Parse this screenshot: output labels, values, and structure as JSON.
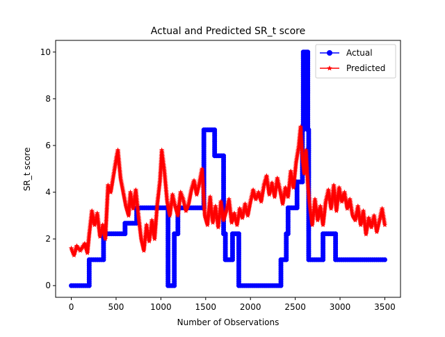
{
  "chart_data": {
    "type": "line",
    "title": "Actual and Predicted SR_t score",
    "xlabel": "Number of Observations",
    "ylabel": "SR_t score",
    "xlim": [
      -175,
      3675
    ],
    "ylim": [
      -0.5,
      10.5
    ],
    "xticks": [
      0,
      500,
      1000,
      1500,
      2000,
      2500,
      3000,
      3500
    ],
    "yticks": [
      0,
      2,
      4,
      6,
      8,
      10
    ],
    "grid": false,
    "legend_position": "top-right",
    "series": [
      {
        "name": "Actual",
        "color": "#0000ff",
        "marker": "circle",
        "points": [
          [
            0,
            0
          ],
          [
            200,
            0
          ],
          [
            200,
            1.11
          ],
          [
            360,
            1.11
          ],
          [
            360,
            2.22
          ],
          [
            600,
            2.22
          ],
          [
            600,
            2.67
          ],
          [
            730,
            2.67
          ],
          [
            730,
            3.33
          ],
          [
            1080,
            3.33
          ],
          [
            1080,
            0
          ],
          [
            1150,
            0
          ],
          [
            1150,
            2.22
          ],
          [
            1190,
            2.22
          ],
          [
            1190,
            3.33
          ],
          [
            1480,
            3.33
          ],
          [
            1480,
            6.67
          ],
          [
            1600,
            6.67
          ],
          [
            1600,
            5.56
          ],
          [
            1700,
            5.56
          ],
          [
            1700,
            2.22
          ],
          [
            1720,
            2.22
          ],
          [
            1720,
            1.11
          ],
          [
            1800,
            1.11
          ],
          [
            1800,
            2.22
          ],
          [
            1870,
            2.22
          ],
          [
            1870,
            0
          ],
          [
            2340,
            0
          ],
          [
            2340,
            1.11
          ],
          [
            2400,
            1.11
          ],
          [
            2400,
            2.22
          ],
          [
            2420,
            2.22
          ],
          [
            2420,
            3.33
          ],
          [
            2520,
            3.33
          ],
          [
            2520,
            4.44
          ],
          [
            2580,
            4.44
          ],
          [
            2580,
            6.67
          ],
          [
            2590,
            6.67
          ],
          [
            2590,
            10
          ],
          [
            2640,
            10
          ],
          [
            2640,
            6.67
          ],
          [
            2650,
            6.67
          ],
          [
            2650,
            1.11
          ],
          [
            2810,
            1.11
          ],
          [
            2810,
            2.22
          ],
          [
            2950,
            2.22
          ],
          [
            2950,
            1.11
          ],
          [
            3500,
            1.11
          ]
        ]
      },
      {
        "name": "Predicted",
        "color": "#ff0000",
        "marker": "star",
        "points": [
          [
            0,
            1.6
          ],
          [
            30,
            1.3
          ],
          [
            60,
            1.7
          ],
          [
            100,
            1.5
          ],
          [
            150,
            1.8
          ],
          [
            180,
            1.4
          ],
          [
            200,
            2.2
          ],
          [
            230,
            3.2
          ],
          [
            260,
            2.6
          ],
          [
            290,
            3.1
          ],
          [
            320,
            2.1
          ],
          [
            350,
            2.6
          ],
          [
            380,
            2.0
          ],
          [
            410,
            4.3
          ],
          [
            440,
            4.0
          ],
          [
            470,
            4.7
          ],
          [
            500,
            5.4
          ],
          [
            520,
            5.8
          ],
          [
            550,
            4.6
          ],
          [
            580,
            4.0
          ],
          [
            610,
            3.4
          ],
          [
            640,
            3.0
          ],
          [
            660,
            4.0
          ],
          [
            690,
            3.3
          ],
          [
            720,
            4.1
          ],
          [
            750,
            3.0
          ],
          [
            780,
            2.0
          ],
          [
            810,
            1.5
          ],
          [
            840,
            2.6
          ],
          [
            870,
            1.9
          ],
          [
            900,
            2.8
          ],
          [
            930,
            2.0
          ],
          [
            960,
            3.5
          ],
          [
            990,
            4.5
          ],
          [
            1010,
            5.8
          ],
          [
            1040,
            4.9
          ],
          [
            1070,
            3.6
          ],
          [
            1100,
            3.0
          ],
          [
            1130,
            3.9
          ],
          [
            1160,
            3.4
          ],
          [
            1190,
            3.0
          ],
          [
            1220,
            4.0
          ],
          [
            1250,
            3.7
          ],
          [
            1280,
            3.2
          ],
          [
            1310,
            3.5
          ],
          [
            1340,
            4.1
          ],
          [
            1370,
            4.5
          ],
          [
            1400,
            3.9
          ],
          [
            1430,
            4.4
          ],
          [
            1460,
            5.0
          ],
          [
            1490,
            3.0
          ],
          [
            1520,
            2.6
          ],
          [
            1550,
            3.8
          ],
          [
            1580,
            2.7
          ],
          [
            1610,
            3.4
          ],
          [
            1640,
            2.5
          ],
          [
            1670,
            3.6
          ],
          [
            1700,
            2.8
          ],
          [
            1730,
            3.2
          ],
          [
            1760,
            3.7
          ],
          [
            1790,
            2.7
          ],
          [
            1820,
            3.1
          ],
          [
            1850,
            2.6
          ],
          [
            1880,
            3.3
          ],
          [
            1910,
            2.9
          ],
          [
            1940,
            3.5
          ],
          [
            1970,
            3.0
          ],
          [
            2000,
            3.6
          ],
          [
            2030,
            4.1
          ],
          [
            2060,
            3.7
          ],
          [
            2090,
            4.0
          ],
          [
            2120,
            3.6
          ],
          [
            2150,
            4.3
          ],
          [
            2180,
            4.7
          ],
          [
            2210,
            3.9
          ],
          [
            2240,
            4.4
          ],
          [
            2270,
            3.8
          ],
          [
            2300,
            4.6
          ],
          [
            2330,
            4.1
          ],
          [
            2360,
            3.5
          ],
          [
            2390,
            4.2
          ],
          [
            2420,
            3.8
          ],
          [
            2450,
            4.9
          ],
          [
            2480,
            4.2
          ],
          [
            2510,
            5.3
          ],
          [
            2540,
            6.0
          ],
          [
            2560,
            6.8
          ],
          [
            2580,
            5.5
          ],
          [
            2600,
            4.8
          ],
          [
            2620,
            5.8
          ],
          [
            2640,
            4.4
          ],
          [
            2660,
            3.5
          ],
          [
            2690,
            2.6
          ],
          [
            2720,
            3.7
          ],
          [
            2750,
            2.8
          ],
          [
            2780,
            3.4
          ],
          [
            2810,
            2.6
          ],
          [
            2840,
            3.6
          ],
          [
            2870,
            4.1
          ],
          [
            2900,
            3.3
          ],
          [
            2930,
            4.3
          ],
          [
            2960,
            3.2
          ],
          [
            2990,
            4.2
          ],
          [
            3020,
            3.6
          ],
          [
            3050,
            4.0
          ],
          [
            3080,
            3.3
          ],
          [
            3110,
            3.7
          ],
          [
            3140,
            3.0
          ],
          [
            3170,
            2.8
          ],
          [
            3200,
            3.4
          ],
          [
            3230,
            2.6
          ],
          [
            3260,
            3.2
          ],
          [
            3290,
            2.2
          ],
          [
            3320,
            2.9
          ],
          [
            3350,
            2.5
          ],
          [
            3380,
            3.0
          ],
          [
            3410,
            2.3
          ],
          [
            3440,
            2.8
          ],
          [
            3470,
            3.3
          ],
          [
            3500,
            2.6
          ]
        ]
      }
    ]
  }
}
